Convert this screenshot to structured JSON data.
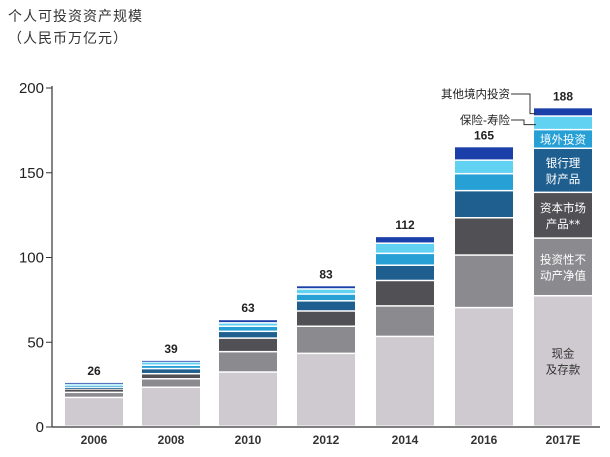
{
  "title_line1": "个人可投资资产规模",
  "title_line2": "（人民币万亿元）",
  "chart_data": {
    "type": "bar",
    "stacked": true,
    "title": "个人可投资资产规模（人民币万亿元）",
    "categories": [
      "2006",
      "2008",
      "2010",
      "2012",
      "2014",
      "2016",
      "2017E"
    ],
    "totals": [
      26,
      39,
      63,
      83,
      112,
      165,
      188
    ],
    "ylim": [
      0,
      200
    ],
    "yticks": [
      0,
      50,
      100,
      150,
      200
    ],
    "xlabel": "",
    "ylabel": "",
    "grid": false,
    "series": [
      {
        "name": "现金及存款",
        "label_lines": [
          "现金",
          "及存款"
        ],
        "color": "#cfcacf",
        "text_color": "#333333",
        "values": [
          17,
          23,
          32,
          43,
          53,
          70,
          77
        ]
      },
      {
        "name": "投资性不动产净值",
        "label_lines": [
          "投资性不",
          "动产净值"
        ],
        "color": "#8b8b8f",
        "text_color": "#ffffff",
        "values": [
          3,
          5,
          12,
          16,
          18,
          31,
          34
        ]
      },
      {
        "name": "资本市场产品**",
        "label_lines": [
          "资本市场",
          "产品**"
        ],
        "color": "#505055",
        "text_color": "#ffffff",
        "values": [
          2,
          3,
          8,
          9,
          15,
          22,
          27
        ]
      },
      {
        "name": "银行理财产品",
        "label_lines": [
          "银行理",
          "财产品"
        ],
        "color": "#1f5f8f",
        "text_color": "#ffffff",
        "values": [
          1,
          3,
          4,
          6,
          9,
          16,
          26
        ]
      },
      {
        "name": "境外投资",
        "label_lines": [
          "境外投资"
        ],
        "color": "#27a0d6",
        "text_color": "#ffffff",
        "values": [
          1,
          2,
          3,
          4,
          7,
          10,
          11
        ]
      },
      {
        "name": "保险-寿险",
        "label_lines": [],
        "color": "#62d2f2",
        "text_color": "#ffffff",
        "values": [
          1,
          2,
          2,
          3,
          6,
          8,
          8
        ]
      },
      {
        "name": "其他境内投资",
        "label_lines": [],
        "color": "#1b3fa8",
        "text_color": "#ffffff",
        "values": [
          1,
          1,
          2,
          2,
          4,
          8,
          5
        ]
      }
    ],
    "legend_callouts": [
      "其他境内投资",
      "保险-寿险"
    ]
  }
}
